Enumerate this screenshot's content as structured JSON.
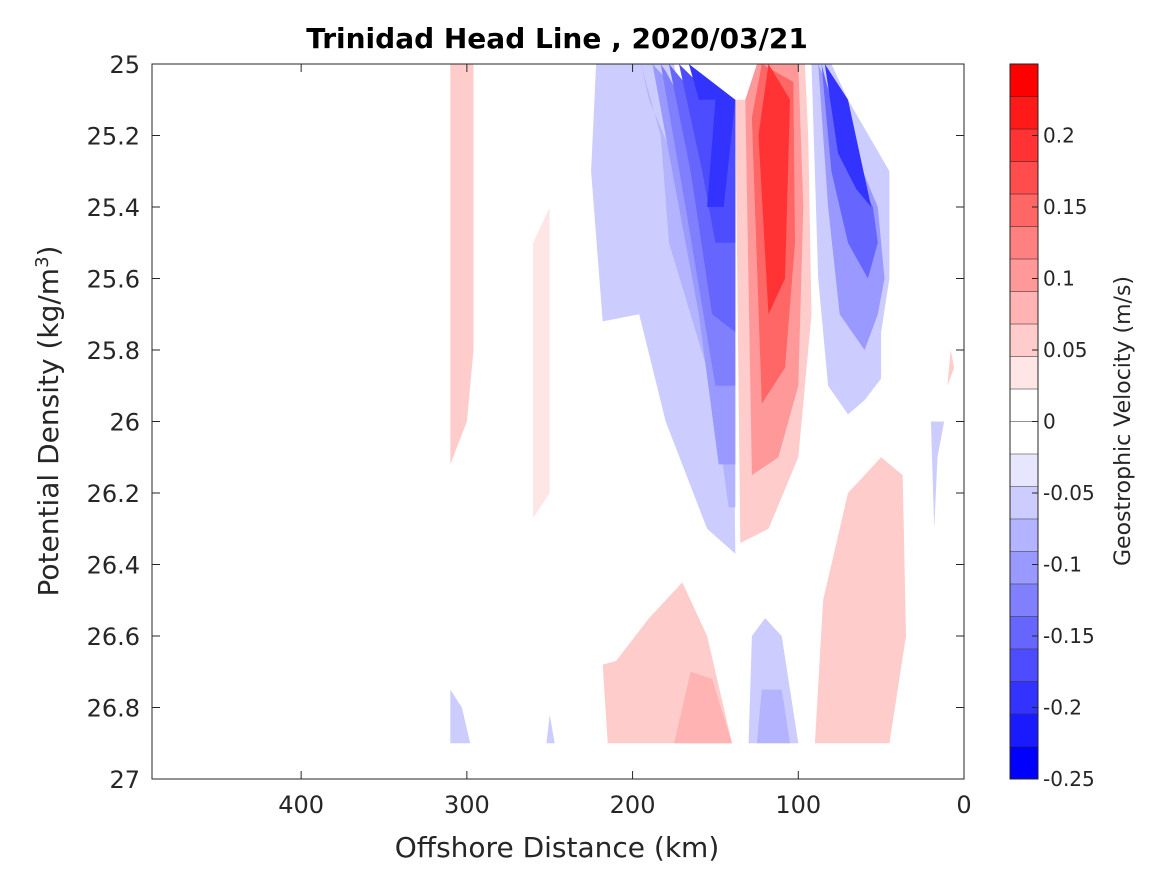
{
  "chart_data": {
    "type": "heatmap",
    "subtype": "filled-contour",
    "title": "Trinidad Head Line , 2020/03/21",
    "xlabel": "Offshore Distance (km)",
    "ylabel": "Potential Density (kg/m",
    "ylabel_superscript": "3",
    "ylabel_suffix": ")",
    "xlim": [
      490,
      0
    ],
    "x_reversed": true,
    "ylim": [
      25,
      27
    ],
    "y_reversed": true,
    "xticks": [
      400,
      300,
      200,
      100,
      0
    ],
    "xtick_labels": [
      "400",
      "300",
      "200",
      "100",
      "0"
    ],
    "yticks": [
      25,
      25.2,
      25.4,
      25.6,
      25.8,
      26,
      26.2,
      26.4,
      26.6,
      26.8,
      27
    ],
    "ytick_labels": [
      "25",
      "25.2",
      "25.4",
      "25.6",
      "25.8",
      "26",
      "26.2",
      "26.4",
      "26.6",
      "26.8",
      "27"
    ],
    "grid": false,
    "colorbar": {
      "label": "Geostrophic Velocity (m/s)",
      "range": [
        -0.25,
        0.25
      ],
      "levels": [
        -0.25,
        -0.225,
        -0.2,
        -0.175,
        -0.15,
        -0.125,
        -0.1,
        -0.075,
        -0.05,
        -0.025,
        0,
        0.025,
        0.05,
        0.075,
        0.1,
        0.125,
        0.15,
        0.175,
        0.2,
        0.225,
        0.25
      ],
      "band_colors": [
        "#0000ff",
        "#1a1aff",
        "#3333ff",
        "#4d4dff",
        "#6666ff",
        "#8080ff",
        "#9999ff",
        "#b3b3ff",
        "#ccccff",
        "#e6e6ff",
        "#ffffff",
        "#ffffff",
        "#ffe6e6",
        "#ffcccc",
        "#ffb3b3",
        "#ff9999",
        "#ff8080",
        "#ff6666",
        "#ff4d4d",
        "#ff3333",
        "#ff1a1a",
        "#ff0000"
      ],
      "tick_values": [
        -0.25,
        -0.2,
        -0.15,
        -0.1,
        -0.05,
        0,
        0.05,
        0.1,
        0.15,
        0.2
      ],
      "tick_labels": [
        "-0.25",
        "-0.2",
        "-0.15",
        "-0.1",
        "-0.05",
        "0",
        "0.05",
        "0.1",
        "0.15",
        "0.2"
      ]
    },
    "contour_regions": [
      {
        "name": "neg-1",
        "value": -0.05,
        "points": [
          [
            222,
            25
          ],
          [
            175,
            25
          ],
          [
            160,
            25.4
          ],
          [
            140,
            25.6
          ],
          [
            138,
            26.37
          ],
          [
            155,
            26.3
          ],
          [
            180,
            26.0
          ],
          [
            196,
            25.7
          ],
          [
            218,
            25.72
          ],
          [
            225,
            25.3
          ]
        ]
      },
      {
        "name": "neg-2",
        "value": -0.075,
        "points": [
          [
            195,
            25
          ],
          [
            183,
            25.2
          ],
          [
            178,
            25.5
          ],
          [
            152,
            25.9
          ],
          [
            142,
            26.24
          ],
          [
            138,
            26.24
          ],
          [
            138,
            25.8
          ],
          [
            145,
            25.5
          ],
          [
            172,
            25.3
          ],
          [
            190,
            25.1
          ]
        ]
      },
      {
        "name": "neg-3",
        "value": -0.1,
        "points": [
          [
            188,
            25
          ],
          [
            176,
            25.3
          ],
          [
            160,
            25.7
          ],
          [
            148,
            26.12
          ],
          [
            138,
            26.12
          ],
          [
            138,
            25.3
          ],
          [
            160,
            25.2
          ],
          [
            178,
            25.05
          ]
        ]
      },
      {
        "name": "neg-4",
        "value": -0.125,
        "points": [
          [
            183,
            25
          ],
          [
            168,
            25.4
          ],
          [
            150,
            25.9
          ],
          [
            138,
            25.9
          ],
          [
            138,
            25.2
          ],
          [
            165,
            25.15
          ],
          [
            180,
            25.02
          ]
        ]
      },
      {
        "name": "neg-5",
        "value": -0.15,
        "points": [
          [
            178,
            25
          ],
          [
            165,
            25.3
          ],
          [
            152,
            25.7
          ],
          [
            138,
            25.75
          ],
          [
            138,
            25.1
          ],
          [
            160,
            25.1
          ]
        ]
      },
      {
        "name": "neg-6",
        "value": -0.175,
        "points": [
          [
            172,
            25
          ],
          [
            158,
            25.3
          ],
          [
            150,
            25.5
          ],
          [
            138,
            25.5
          ],
          [
            138,
            25.1
          ],
          [
            150,
            25.1
          ]
        ]
      },
      {
        "name": "neg-7",
        "value": -0.2,
        "points": [
          [
            166,
            25
          ],
          [
            160,
            25.1
          ],
          [
            150,
            25.1
          ],
          [
            155,
            25.4
          ],
          [
            145,
            25.4
          ],
          [
            138,
            25.1
          ]
        ]
      },
      {
        "name": "neg-right-1",
        "value": -0.05,
        "points": [
          [
            92,
            25
          ],
          [
            88,
            25.6
          ],
          [
            82,
            25.9
          ],
          [
            70,
            25.98
          ],
          [
            60,
            25.94
          ],
          [
            50,
            25.88
          ],
          [
            50,
            25.75
          ],
          [
            45,
            25.6
          ],
          [
            45,
            25.3
          ],
          [
            70,
            25.1
          ],
          [
            80,
            25
          ]
        ]
      },
      {
        "name": "neg-right-2",
        "value": -0.1,
        "points": [
          [
            88,
            25
          ],
          [
            82,
            25.4
          ],
          [
            75,
            25.7
          ],
          [
            60,
            25.8
          ],
          [
            52,
            25.7
          ],
          [
            48,
            25.6
          ],
          [
            52,
            25.4
          ],
          [
            70,
            25.2
          ]
        ]
      },
      {
        "name": "neg-right-3",
        "value": -0.15,
        "points": [
          [
            86,
            25
          ],
          [
            80,
            25.3
          ],
          [
            70,
            25.5
          ],
          [
            58,
            25.6
          ],
          [
            52,
            25.5
          ],
          [
            55,
            25.4
          ],
          [
            72,
            25.25
          ]
        ]
      },
      {
        "name": "neg-right-4",
        "value": -0.2,
        "points": [
          [
            84,
            25
          ],
          [
            76,
            25.25
          ],
          [
            65,
            25.35
          ],
          [
            56,
            25.4
          ],
          [
            70,
            25.1
          ]
        ]
      },
      {
        "name": "pos-core-1",
        "value": 0.05,
        "points": [
          [
            138,
            25.1
          ],
          [
            135,
            26.34
          ],
          [
            118,
            26.3
          ],
          [
            100,
            26.1
          ],
          [
            92,
            25.7
          ],
          [
            94,
            25.2
          ],
          [
            96,
            25
          ],
          [
            108,
            25
          ],
          [
            125,
            25.1
          ]
        ]
      },
      {
        "name": "pos-core-2",
        "value": 0.1,
        "points": [
          [
            132,
            25.1
          ],
          [
            128,
            26.15
          ],
          [
            112,
            26.1
          ],
          [
            100,
            25.9
          ],
          [
            97,
            25.4
          ],
          [
            100,
            25.0
          ],
          [
            125,
            25.0
          ]
        ]
      },
      {
        "name": "pos-core-3",
        "value": 0.15,
        "points": [
          [
            128,
            25.15
          ],
          [
            122,
            25.95
          ],
          [
            108,
            25.85
          ],
          [
            102,
            25.5
          ],
          [
            103,
            25.05
          ],
          [
            122,
            25.0
          ]
        ]
      },
      {
        "name": "pos-core-4",
        "value": 0.2,
        "points": [
          [
            124,
            25.2
          ],
          [
            118,
            25.7
          ],
          [
            108,
            25.6
          ],
          [
            105,
            25.1
          ],
          [
            118,
            25.0
          ]
        ]
      },
      {
        "name": "pos-left-1",
        "value": 0.05,
        "points": [
          [
            310,
            25
          ],
          [
            296,
            25
          ],
          [
            296,
            25.8
          ],
          [
            300,
            26.0
          ],
          [
            310,
            26.12
          ]
        ]
      },
      {
        "name": "pos-left-2",
        "value": 0.025,
        "points": [
          [
            260,
            25.5
          ],
          [
            250,
            25.4
          ],
          [
            250,
            26.2
          ],
          [
            260,
            26.27
          ]
        ]
      },
      {
        "name": "pos-bottom-1",
        "value": 0.05,
        "points": [
          [
            215,
            26.9
          ],
          [
            218,
            26.68
          ],
          [
            210,
            26.67
          ],
          [
            190,
            26.55
          ],
          [
            170,
            26.45
          ],
          [
            155,
            26.6
          ],
          [
            140,
            26.9
          ]
        ]
      },
      {
        "name": "pos-bottom-2",
        "value": 0.075,
        "points": [
          [
            175,
            26.9
          ],
          [
            165,
            26.7
          ],
          [
            152,
            26.72
          ],
          [
            140,
            26.9
          ]
        ]
      },
      {
        "name": "pos-right-1",
        "value": 0.05,
        "points": [
          [
            90,
            26.9
          ],
          [
            85,
            26.5
          ],
          [
            70,
            26.2
          ],
          [
            50,
            26.1
          ],
          [
            37,
            26.15
          ],
          [
            35,
            26.6
          ],
          [
            45,
            26.9
          ]
        ]
      },
      {
        "name": "neg-bottom-1",
        "value": -0.05,
        "points": [
          [
            130,
            26.9
          ],
          [
            128,
            26.6
          ],
          [
            120,
            26.55
          ],
          [
            110,
            26.6
          ],
          [
            100,
            26.9
          ]
        ]
      },
      {
        "name": "neg-bottom-2",
        "value": -0.075,
        "points": [
          [
            125,
            26.9
          ],
          [
            122,
            26.75
          ],
          [
            110,
            26.75
          ],
          [
            105,
            26.9
          ]
        ]
      },
      {
        "name": "neg-bottom-left",
        "value": -0.05,
        "points": [
          [
            310,
            26.9
          ],
          [
            310,
            26.75
          ],
          [
            303,
            26.8
          ],
          [
            298,
            26.9
          ]
        ]
      },
      {
        "name": "neg-bottom-mid",
        "value": -0.05,
        "points": [
          [
            252,
            26.9
          ],
          [
            247,
            26.9
          ],
          [
            250,
            26.82
          ]
        ]
      },
      {
        "name": "neg-far-right",
        "value": -0.05,
        "points": [
          [
            20,
            26.0
          ],
          [
            18,
            26.3
          ],
          [
            16,
            26.1
          ],
          [
            12,
            26.0
          ]
        ]
      },
      {
        "name": "pos-far-right",
        "value": 0.05,
        "points": [
          [
            8,
            25.8
          ],
          [
            6,
            25.85
          ],
          [
            10,
            25.9
          ]
        ]
      }
    ]
  }
}
